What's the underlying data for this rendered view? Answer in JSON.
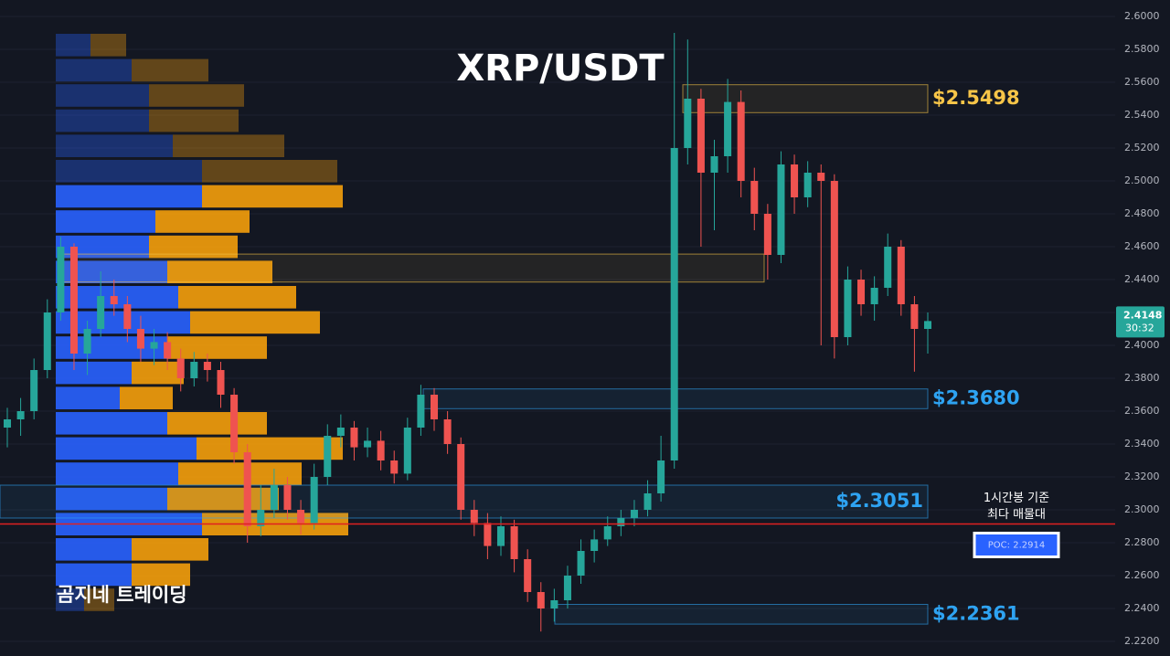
{
  "chart_data": {
    "type": "candlestick",
    "title": "XRP/USDT",
    "watermark": "곰지네 트레이딩",
    "ylim": [
      2.22,
      2.6
    ],
    "yticks": [
      {
        "value": 2.22,
        "label": "2.2200"
      },
      {
        "value": 2.24,
        "label": "2.2400"
      },
      {
        "value": 2.26,
        "label": "2.2600"
      },
      {
        "value": 2.28,
        "label": "2.2800"
      },
      {
        "value": 2.3,
        "label": "2.3000"
      },
      {
        "value": 2.32,
        "label": "2.3200"
      },
      {
        "value": 2.34,
        "label": "2.3400"
      },
      {
        "value": 2.36,
        "label": "2.3600"
      },
      {
        "value": 2.38,
        "label": "2.3800"
      },
      {
        "value": 2.4,
        "label": "2.4000"
      },
      {
        "value": 2.42,
        "label": "2.4200"
      },
      {
        "value": 2.44,
        "label": "2.4400"
      },
      {
        "value": 2.46,
        "label": "2.4600"
      },
      {
        "value": 2.48,
        "label": "2.4800"
      },
      {
        "value": 2.5,
        "label": "2.5000"
      },
      {
        "value": 2.52,
        "label": "2.5200"
      },
      {
        "value": 2.54,
        "label": "2.5400"
      },
      {
        "value": 2.56,
        "label": "2.5600"
      },
      {
        "value": 2.58,
        "label": "2.5800"
      },
      {
        "value": 2.6,
        "label": "2.6000"
      }
    ],
    "grid": true,
    "up_color": "#26a69a",
    "down_color": "#ef5350",
    "candles": [
      [
        2.35,
        2.362,
        2.338,
        2.355
      ],
      [
        2.355,
        2.368,
        2.345,
        2.36
      ],
      [
        2.36,
        2.392,
        2.355,
        2.385
      ],
      [
        2.385,
        2.428,
        2.38,
        2.42
      ],
      [
        2.42,
        2.466,
        2.415,
        2.46
      ],
      [
        2.46,
        2.462,
        2.385,
        2.395
      ],
      [
        2.395,
        2.415,
        2.382,
        2.41
      ],
      [
        2.41,
        2.445,
        2.405,
        2.43
      ],
      [
        2.43,
        2.44,
        2.418,
        2.425
      ],
      [
        2.425,
        2.43,
        2.402,
        2.41
      ],
      [
        2.41,
        2.418,
        2.39,
        2.398
      ],
      [
        2.398,
        2.41,
        2.388,
        2.402
      ],
      [
        2.402,
        2.408,
        2.385,
        2.392
      ],
      [
        2.392,
        2.398,
        2.372,
        2.38
      ],
      [
        2.38,
        2.396,
        2.375,
        2.39
      ],
      [
        2.39,
        2.395,
        2.378,
        2.385
      ],
      [
        2.385,
        2.39,
        2.362,
        2.37
      ],
      [
        2.37,
        2.374,
        2.328,
        2.335
      ],
      [
        2.335,
        2.34,
        2.28,
        2.29
      ],
      [
        2.29,
        2.315,
        2.284,
        2.3
      ],
      [
        2.3,
        2.325,
        2.295,
        2.315
      ],
      [
        2.315,
        2.32,
        2.294,
        2.3
      ],
      [
        2.3,
        2.306,
        2.285,
        2.292
      ],
      [
        2.292,
        2.328,
        2.288,
        2.32
      ],
      [
        2.32,
        2.352,
        2.315,
        2.345
      ],
      [
        2.345,
        2.358,
        2.338,
        2.35
      ],
      [
        2.35,
        2.354,
        2.33,
        2.338
      ],
      [
        2.338,
        2.35,
        2.332,
        2.342
      ],
      [
        2.342,
        2.348,
        2.324,
        2.33
      ],
      [
        2.33,
        2.336,
        2.316,
        2.322
      ],
      [
        2.322,
        2.356,
        2.318,
        2.35
      ],
      [
        2.35,
        2.376,
        2.345,
        2.37
      ],
      [
        2.37,
        2.374,
        2.348,
        2.355
      ],
      [
        2.355,
        2.36,
        2.334,
        2.34
      ],
      [
        2.34,
        2.344,
        2.294,
        2.3
      ],
      [
        2.3,
        2.306,
        2.284,
        2.292
      ],
      [
        2.292,
        2.298,
        2.27,
        2.278
      ],
      [
        2.278,
        2.296,
        2.272,
        2.29
      ],
      [
        2.29,
        2.294,
        2.262,
        2.27
      ],
      [
        2.27,
        2.276,
        2.244,
        2.25
      ],
      [
        2.25,
        2.256,
        2.226,
        2.24
      ],
      [
        2.24,
        2.252,
        2.232,
        2.245
      ],
      [
        2.245,
        2.266,
        2.24,
        2.26
      ],
      [
        2.26,
        2.282,
        2.255,
        2.275
      ],
      [
        2.275,
        2.288,
        2.268,
        2.282
      ],
      [
        2.282,
        2.296,
        2.278,
        2.29
      ],
      [
        2.29,
        2.3,
        2.284,
        2.295
      ],
      [
        2.295,
        2.306,
        2.29,
        2.3
      ],
      [
        2.3,
        2.318,
        2.296,
        2.31
      ],
      [
        2.31,
        2.345,
        2.305,
        2.33
      ],
      [
        2.33,
        2.59,
        2.325,
        2.52
      ],
      [
        2.52,
        2.586,
        2.51,
        2.55
      ],
      [
        2.55,
        2.556,
        2.46,
        2.505
      ],
      [
        2.505,
        2.525,
        2.47,
        2.515
      ],
      [
        2.515,
        2.562,
        2.505,
        2.548
      ],
      [
        2.548,
        2.555,
        2.49,
        2.5
      ],
      [
        2.5,
        2.508,
        2.47,
        2.48
      ],
      [
        2.48,
        2.486,
        2.44,
        2.455
      ],
      [
        2.455,
        2.518,
        2.45,
        2.51
      ],
      [
        2.51,
        2.516,
        2.48,
        2.49
      ],
      [
        2.49,
        2.512,
        2.484,
        2.505
      ],
      [
        2.505,
        2.51,
        2.4,
        2.5
      ],
      [
        2.5,
        2.504,
        2.392,
        2.405
      ],
      [
        2.405,
        2.448,
        2.4,
        2.44
      ],
      [
        2.44,
        2.446,
        2.418,
        2.425
      ],
      [
        2.425,
        2.442,
        2.415,
        2.435
      ],
      [
        2.435,
        2.468,
        2.43,
        2.46
      ],
      [
        2.46,
        2.464,
        2.418,
        2.425
      ],
      [
        2.425,
        2.43,
        2.384,
        2.41
      ],
      [
        2.41,
        2.42,
        2.395,
        2.4148
      ]
    ],
    "volume_profile": {
      "buy": [
        38,
        83,
        102,
        102,
        128,
        160,
        160,
        109,
        102,
        122,
        134,
        147,
        122,
        83,
        70,
        122,
        154,
        134,
        122,
        160,
        83,
        83,
        31
      ],
      "sell": [
        39,
        84,
        104,
        98,
        122,
        148,
        154,
        103,
        97,
        115,
        129,
        142,
        109,
        57,
        58,
        109,
        160,
        135,
        122,
        160,
        84,
        64,
        33
      ],
      "buy_color": "#2962ff",
      "sell_color": "#f59e0b"
    },
    "zones": [
      {
        "label": "$2.5498",
        "top": 2.5585,
        "bottom": 2.5415,
        "color": "#f7c548"
      },
      {
        "top": 2.4555,
        "bottom": 2.4385,
        "color": "#f7c548"
      },
      {
        "label": "$2.3680",
        "top": 2.3735,
        "bottom": 2.3615,
        "color": "#2ea3f2"
      },
      {
        "label": "$2.3051",
        "top": 2.315,
        "bottom": 2.295,
        "color": "#2ea3f2"
      },
      {
        "label": "$2.2361",
        "top": 2.2425,
        "bottom": 2.2305,
        "color": "#2ea3f2"
      }
    ],
    "poc": {
      "value": 2.2914,
      "label": "POC: 2.2914",
      "note": [
        "1시간봉 기준",
        "최다 매물대"
      ],
      "color": "#e02020"
    },
    "last_price": 2.4148,
    "countdown": "30:32"
  }
}
